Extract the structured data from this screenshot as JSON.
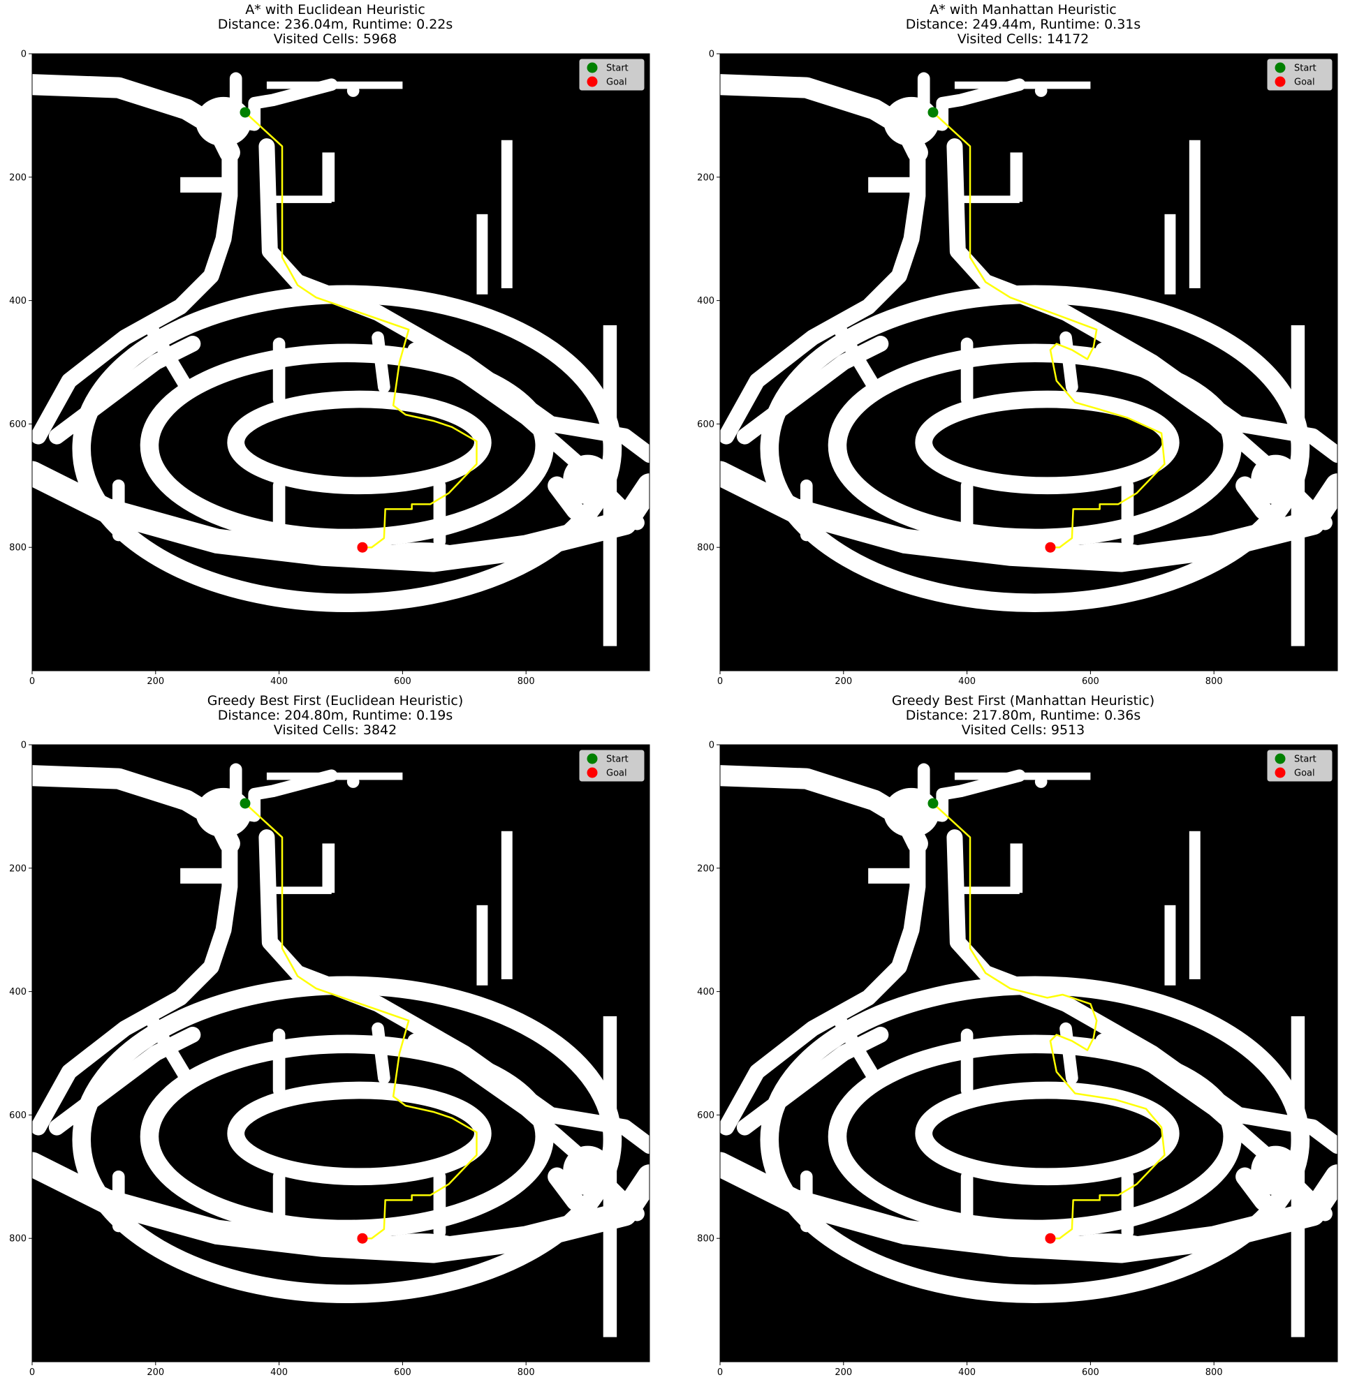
{
  "figure": {
    "colors": {
      "free_space": "#ffffff",
      "obstacle": "#000000",
      "path": "#ffff00",
      "start": "#008000",
      "goal": "#ff0000"
    }
  },
  "chart_data": [
    {
      "type": "scatter",
      "title_lines": [
        "A* with Euclidean Heuristic",
        "Distance: 236.04m, Runtime: 0.22s",
        "Visited Cells: 5968"
      ],
      "xlim": [
        0,
        1000
      ],
      "ylim": [
        1000,
        0
      ],
      "x_ticks": [
        0,
        200,
        400,
        600,
        800
      ],
      "y_ticks": [
        0,
        200,
        400,
        600,
        800
      ],
      "legend": [
        "Start",
        "Goal"
      ],
      "legend_position": "top-right",
      "start": [
        345,
        95
      ],
      "goal": [
        535,
        800
      ],
      "path": [
        [
          345,
          95
        ],
        [
          405,
          150
        ],
        [
          405,
          330
        ],
        [
          430,
          375
        ],
        [
          460,
          395
        ],
        [
          610,
          447
        ],
        [
          595,
          500
        ],
        [
          585,
          570
        ],
        [
          605,
          585
        ],
        [
          650,
          595
        ],
        [
          680,
          605
        ],
        [
          720,
          628
        ],
        [
          720,
          665
        ],
        [
          675,
          712
        ],
        [
          645,
          730
        ],
        [
          615,
          730
        ],
        [
          615,
          738
        ],
        [
          572,
          738
        ],
        [
          570,
          785
        ],
        [
          550,
          800
        ],
        [
          535,
          800
        ]
      ]
    },
    {
      "type": "scatter",
      "title_lines": [
        "A* with Manhattan Heuristic",
        "Distance: 249.44m, Runtime: 0.31s",
        "Visited Cells: 14172"
      ],
      "xlim": [
        0,
        1000
      ],
      "ylim": [
        1000,
        0
      ],
      "x_ticks": [
        0,
        200,
        400,
        600,
        800
      ],
      "y_ticks": [
        0,
        200,
        400,
        600,
        800
      ],
      "legend": [
        "Start",
        "Goal"
      ],
      "legend_position": "top-right",
      "start": [
        345,
        95
      ],
      "goal": [
        535,
        800
      ],
      "path": [
        [
          345,
          95
        ],
        [
          405,
          150
        ],
        [
          405,
          330
        ],
        [
          430,
          370
        ],
        [
          470,
          395
        ],
        [
          610,
          447
        ],
        [
          605,
          475
        ],
        [
          595,
          495
        ],
        [
          570,
          480
        ],
        [
          545,
          470
        ],
        [
          535,
          480
        ],
        [
          545,
          530
        ],
        [
          575,
          565
        ],
        [
          610,
          575
        ],
        [
          660,
          590
        ],
        [
          715,
          615
        ],
        [
          720,
          665
        ],
        [
          675,
          712
        ],
        [
          645,
          730
        ],
        [
          615,
          730
        ],
        [
          615,
          738
        ],
        [
          572,
          738
        ],
        [
          570,
          785
        ],
        [
          550,
          800
        ],
        [
          535,
          800
        ]
      ]
    },
    {
      "type": "scatter",
      "title_lines": [
        "Greedy Best First (Euclidean Heuristic)",
        "Distance: 204.80m, Runtime: 0.19s",
        "Visited Cells: 3842"
      ],
      "xlim": [
        0,
        1000
      ],
      "ylim": [
        1000,
        0
      ],
      "x_ticks": [
        0,
        200,
        400,
        600,
        800
      ],
      "y_ticks": [
        0,
        200,
        400,
        600,
        800
      ],
      "legend": [
        "Start",
        "Goal"
      ],
      "legend_position": "top-right",
      "start": [
        345,
        95
      ],
      "goal": [
        535,
        800
      ],
      "path": [
        [
          345,
          95
        ],
        [
          405,
          150
        ],
        [
          405,
          330
        ],
        [
          430,
          375
        ],
        [
          460,
          395
        ],
        [
          610,
          447
        ],
        [
          595,
          500
        ],
        [
          585,
          570
        ],
        [
          605,
          585
        ],
        [
          650,
          595
        ],
        [
          680,
          605
        ],
        [
          720,
          628
        ],
        [
          720,
          665
        ],
        [
          675,
          712
        ],
        [
          645,
          730
        ],
        [
          615,
          730
        ],
        [
          615,
          738
        ],
        [
          572,
          738
        ],
        [
          570,
          785
        ],
        [
          550,
          800
        ],
        [
          535,
          800
        ]
      ]
    },
    {
      "type": "scatter",
      "title_lines": [
        "Greedy Best First (Manhattan Heuristic)",
        "Distance: 217.80m, Runtime: 0.36s",
        "Visited Cells: 9513"
      ],
      "xlim": [
        0,
        1000
      ],
      "ylim": [
        1000,
        0
      ],
      "x_ticks": [
        0,
        200,
        400,
        600,
        800
      ],
      "y_ticks": [
        0,
        200,
        400,
        600,
        800
      ],
      "legend": [
        "Start",
        "Goal"
      ],
      "legend_position": "top-right",
      "start": [
        345,
        95
      ],
      "goal": [
        535,
        800
      ],
      "path": [
        [
          345,
          95
        ],
        [
          405,
          150
        ],
        [
          405,
          330
        ],
        [
          430,
          370
        ],
        [
          470,
          395
        ],
        [
          530,
          410
        ],
        [
          555,
          405
        ],
        [
          600,
          420
        ],
        [
          610,
          447
        ],
        [
          605,
          475
        ],
        [
          595,
          495
        ],
        [
          570,
          480
        ],
        [
          545,
          470
        ],
        [
          535,
          480
        ],
        [
          545,
          530
        ],
        [
          575,
          565
        ],
        [
          640,
          575
        ],
        [
          690,
          590
        ],
        [
          715,
          620
        ],
        [
          720,
          665
        ],
        [
          675,
          712
        ],
        [
          645,
          730
        ],
        [
          615,
          730
        ],
        [
          615,
          738
        ],
        [
          572,
          738
        ],
        [
          570,
          785
        ],
        [
          550,
          800
        ],
        [
          535,
          800
        ]
      ]
    }
  ]
}
